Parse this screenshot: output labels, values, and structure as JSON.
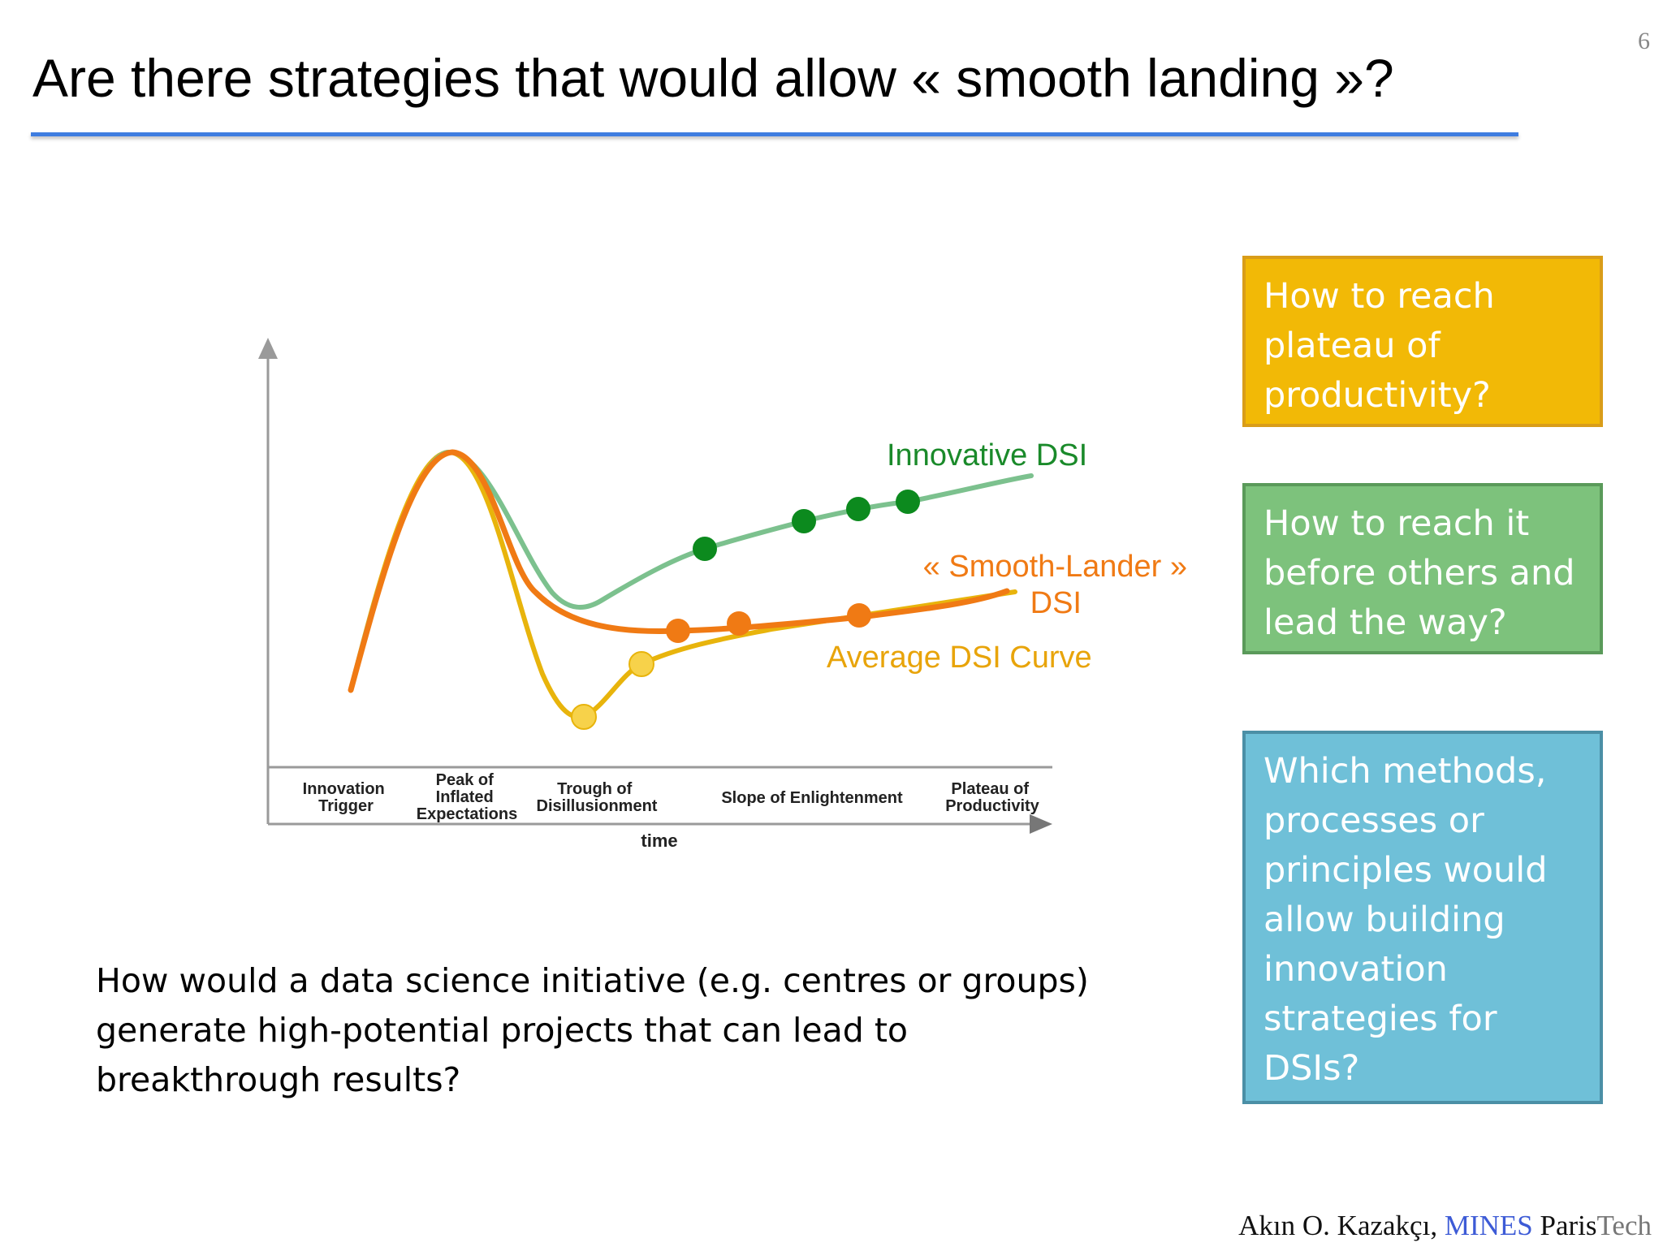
{
  "slide": {
    "page_number": "6",
    "title": "Are there strategies that would allow « smooth landing »?",
    "question": "How would a data science initiative (e.g. centres or groups)\ngenerate high-potential projects that can lead to\nbreakthrough results?",
    "footer": {
      "author": "Akın O. Kazakçı, ",
      "org": "MINES",
      "school": " Paris",
      "school_suffix": "Tech"
    }
  },
  "callouts": [
    {
      "text": "How to reach plateau of productivity?",
      "color": "#f2b906"
    },
    {
      "text": "How to reach it before others and lead the way?",
      "color": "#7dc27c"
    },
    {
      "text": "Which methods, processes or principles would allow building innovation strategies for DSIs?",
      "color": "#6fc0d8"
    }
  ],
  "diagram": {
    "x_axis_label": "time",
    "phases": [
      [
        "Innovation",
        "Trigger"
      ],
      [
        "Peak of",
        "Inflated",
        "Expectations"
      ],
      [
        "Trough of",
        "Disillusionment"
      ],
      [
        "Slope of Enlightenment"
      ],
      [
        "Plateau of",
        "Productivity"
      ]
    ],
    "curves": {
      "innovative": {
        "label": "Innovative DSI",
        "color": "#7cc18e",
        "dot_color": "#0c8a1e"
      },
      "smooth": {
        "label_line1": "« Smooth-Lander »",
        "label_line2": "DSI",
        "color": "#f07a14",
        "dot_color": "#f07a14"
      },
      "average": {
        "label": "Average DSI Curve",
        "color": "#e8b40c",
        "dot_color": "#f7d24a"
      }
    }
  }
}
